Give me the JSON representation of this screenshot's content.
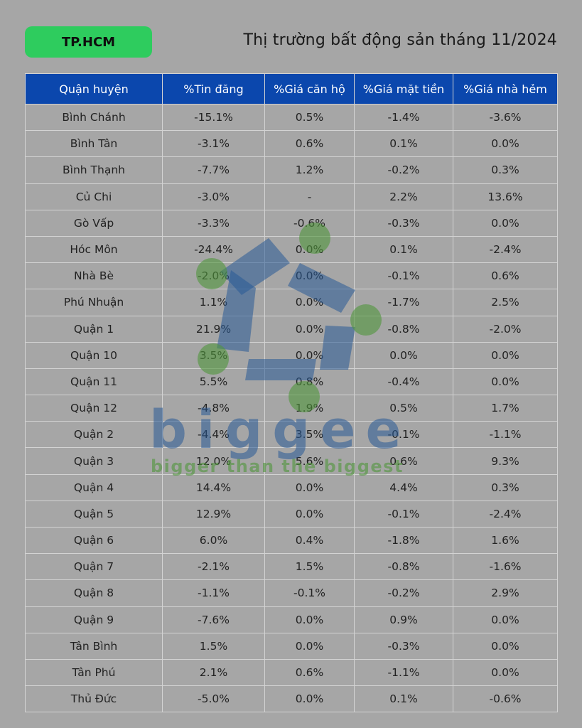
{
  "header": {
    "badge_label": "TP.HCM",
    "title": "Thị trường bất động sản tháng 11/2024"
  },
  "table": {
    "columns": [
      "Quận huyện",
      "%Tin đăng",
      "%Giá căn hộ",
      "%Giá mặt tiền",
      "%Giá nhà hẻm"
    ],
    "rows": [
      [
        "Bình Chánh",
        "-15.1%",
        "0.5%",
        "-1.4%",
        "-3.6%"
      ],
      [
        "Bình Tân",
        "-3.1%",
        "0.6%",
        "0.1%",
        "0.0%"
      ],
      [
        "Bình Thạnh",
        "-7.7%",
        "1.2%",
        "-0.2%",
        "0.3%"
      ],
      [
        "Củ Chi",
        "-3.0%",
        "-",
        "2.2%",
        "13.6%"
      ],
      [
        "Gò Vấp",
        "-3.3%",
        "-0.6%",
        "-0.3%",
        "0.0%"
      ],
      [
        "Hóc Môn",
        "-24.4%",
        "0.0%",
        "0.1%",
        "-2.4%"
      ],
      [
        "Nhà Bè",
        "-2.0%",
        "0.0%",
        "-0.1%",
        "0.6%"
      ],
      [
        "Phú Nhuận",
        "1.1%",
        "0.0%",
        "-1.7%",
        "2.5%"
      ],
      [
        "Quận 1",
        "21.9%",
        "0.0%",
        "-0.8%",
        "-2.0%"
      ],
      [
        "Quận 10",
        "3.5%",
        "0.0%",
        "0.0%",
        "0.0%"
      ],
      [
        "Quận 11",
        "5.5%",
        "0.8%",
        "-0.4%",
        "0.0%"
      ],
      [
        "Quận 12",
        "-4.8%",
        "1.9%",
        "0.5%",
        "1.7%"
      ],
      [
        "Quận 2",
        "-4.4%",
        "3.5%",
        "-0.1%",
        "-1.1%"
      ],
      [
        "Quận 3",
        "12.0%",
        "5.6%",
        "0.6%",
        "9.3%"
      ],
      [
        "Quận 4",
        "14.4%",
        "0.0%",
        "4.4%",
        "0.3%"
      ],
      [
        "Quận 5",
        "12.9%",
        "0.0%",
        "-0.1%",
        "-2.4%"
      ],
      [
        "Quận 6",
        "6.0%",
        "0.4%",
        "-1.8%",
        "1.6%"
      ],
      [
        "Quận 7",
        "-2.1%",
        "1.5%",
        "-0.8%",
        "-1.6%"
      ],
      [
        "Quận 8",
        "-1.1%",
        "-0.1%",
        "-0.2%",
        "2.9%"
      ],
      [
        "Quận 9",
        "-7.6%",
        "0.0%",
        "0.9%",
        "0.0%"
      ],
      [
        "Tân Bình",
        "1.5%",
        "0.0%",
        "-0.3%",
        "0.0%"
      ],
      [
        "Tân Phú",
        "2.1%",
        "0.6%",
        "-1.1%",
        "0.0%"
      ],
      [
        "Thủ Đức",
        "-5.0%",
        "0.0%",
        "0.1%",
        "-0.6%"
      ]
    ]
  },
  "watermark": {
    "brand": "biggee",
    "tagline": "bigger than the biggest"
  },
  "colors": {
    "background": "#a6a6a6",
    "badge": "#2ecc5e",
    "header_row": "#0b47ad"
  }
}
